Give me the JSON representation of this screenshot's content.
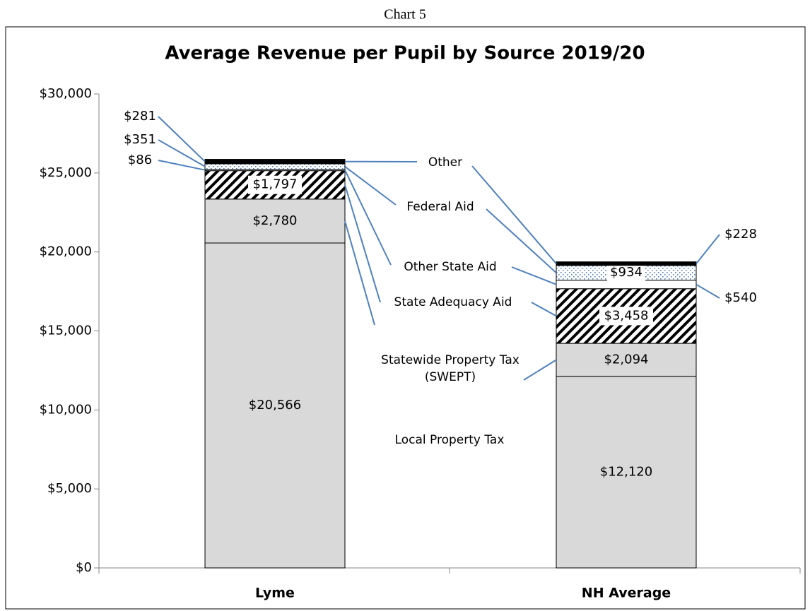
{
  "heading": "Chart 5",
  "chart_data": {
    "type": "stacked-bar",
    "title": "Average Revenue per Pupil by Source 2019/20",
    "categories": [
      "Lyme",
      "NH Average"
    ],
    "series": [
      {
        "name": "Local Property Tax",
        "color": "#d9d9d9",
        "values": [
          20566,
          12120
        ],
        "value_labels": [
          "$20,566",
          "$12,120"
        ]
      },
      {
        "name": "Statewide Property Tax (SWEPT)",
        "color": "#d9d9d9",
        "values": [
          2780,
          2094
        ],
        "value_labels": [
          "$2,780",
          "$2,094"
        ]
      },
      {
        "name": "State Adequacy Aid",
        "color": "#000000",
        "pattern": "hatch",
        "values": [
          1797,
          3458
        ],
        "value_labels": [
          "$1,797",
          "$3,458"
        ]
      },
      {
        "name": "Other State Aid",
        "color": "#ffffff",
        "values": [
          86,
          540
        ],
        "value_labels": [
          "$86",
          "$540"
        ]
      },
      {
        "name": "Federal Aid",
        "color": "#4f81bd",
        "pattern": "dots",
        "values": [
          351,
          934
        ],
        "value_labels": [
          "$351",
          "$934"
        ]
      },
      {
        "name": "Other",
        "color": "#000000",
        "values": [
          281,
          228
        ],
        "value_labels": [
          "$281",
          "$228"
        ]
      }
    ],
    "ylim": [
      0,
      30000
    ],
    "yticks": [
      {
        "value": 0,
        "label": "$0"
      },
      {
        "value": 5000,
        "label": "$5,000"
      },
      {
        "value": 10000,
        "label": "$10,000"
      },
      {
        "value": 15000,
        "label": "$15,000"
      },
      {
        "value": 20000,
        "label": "$20,000"
      },
      {
        "value": 25000,
        "label": "$25,000"
      },
      {
        "value": 30000,
        "label": "$30,000"
      }
    ],
    "grid": false
  }
}
